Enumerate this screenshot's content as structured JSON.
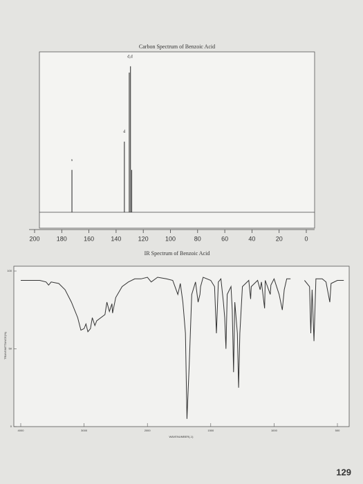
{
  "chart_data": [
    {
      "type": "stem",
      "title": "Carbon Spectrum of Benzoic Acid",
      "x": [
        172.5,
        133.9,
        130.3,
        129.4,
        128.5
      ],
      "values": [
        27,
        45,
        89,
        93,
        27
      ],
      "color": "#222222",
      "xlim": [
        200,
        0
      ],
      "ylim": [
        0,
        100
      ],
      "xticks": [
        200,
        180,
        160,
        140,
        120,
        100,
        80,
        60,
        40,
        20,
        0
      ],
      "peak_labels": [
        {
          "x": 172.5,
          "text": "s"
        },
        {
          "x": 133.9,
          "text": "d"
        },
        {
          "x": 129.8,
          "text": "d,d"
        }
      ]
    },
    {
      "type": "line",
      "title": "IR Spectrum of Benzoic Acid",
      "x_label": "WAVENUMBER(-1)",
      "y_label": "TRANSMITTANCE(%)",
      "x": [
        4000,
        3700,
        3600,
        3560,
        3520,
        3400,
        3300,
        3200,
        3100,
        3050,
        3000,
        2970,
        2940,
        2900,
        2870,
        2830,
        2800,
        2670,
        2640,
        2600,
        2560,
        2550,
        2500,
        2400,
        2300,
        2200,
        2100,
        2000,
        1970,
        1920,
        1850,
        1800,
        1760,
        1740,
        1720,
        1700,
        1688,
        1670,
        1650,
        1620,
        1600,
        1585,
        1580,
        1560,
        1500,
        1470,
        1455,
        1440,
        1420,
        1400,
        1390,
        1380,
        1370,
        1340,
        1330,
        1320,
        1310,
        1290,
        1280,
        1270,
        1250,
        1200,
        1185,
        1180,
        1130,
        1110,
        1100,
        1075,
        1070,
        1030,
        1025,
        1000,
        960,
        935,
        920,
        900,
        870,
        null,
        760,
        720,
        710,
        700,
        685,
        670,
        620,
        590,
        560,
        550,
        500,
        450
      ],
      "values": [
        94,
        94,
        93,
        91,
        93,
        92,
        88,
        80,
        70,
        62,
        63,
        66,
        61,
        63,
        70,
        65,
        68,
        72,
        80,
        74,
        79,
        73,
        83,
        90,
        93,
        95,
        95,
        96,
        93,
        96,
        95,
        94,
        85,
        92,
        80,
        60,
        5,
        40,
        85,
        93,
        80,
        85,
        90,
        96,
        94,
        90,
        60,
        93,
        95,
        80,
        70,
        50,
        85,
        90,
        75,
        35,
        80,
        60,
        25,
        60,
        90,
        94,
        82,
        90,
        94,
        88,
        93,
        76,
        94,
        85,
        91,
        95,
        85,
        75,
        88,
        95,
        95,
        null,
        94,
        90,
        60,
        88,
        55,
        95,
        95,
        93,
        80,
        92,
        94,
        94
      ],
      "color": "#333333",
      "xlim": [
        4000,
        450
      ],
      "ylim": [
        0,
        100
      ],
      "xticks": [
        4000,
        3000,
        2000,
        1500,
        1000,
        500
      ],
      "yticks": [
        0,
        50,
        100
      ]
    }
  ],
  "page_number": "129"
}
